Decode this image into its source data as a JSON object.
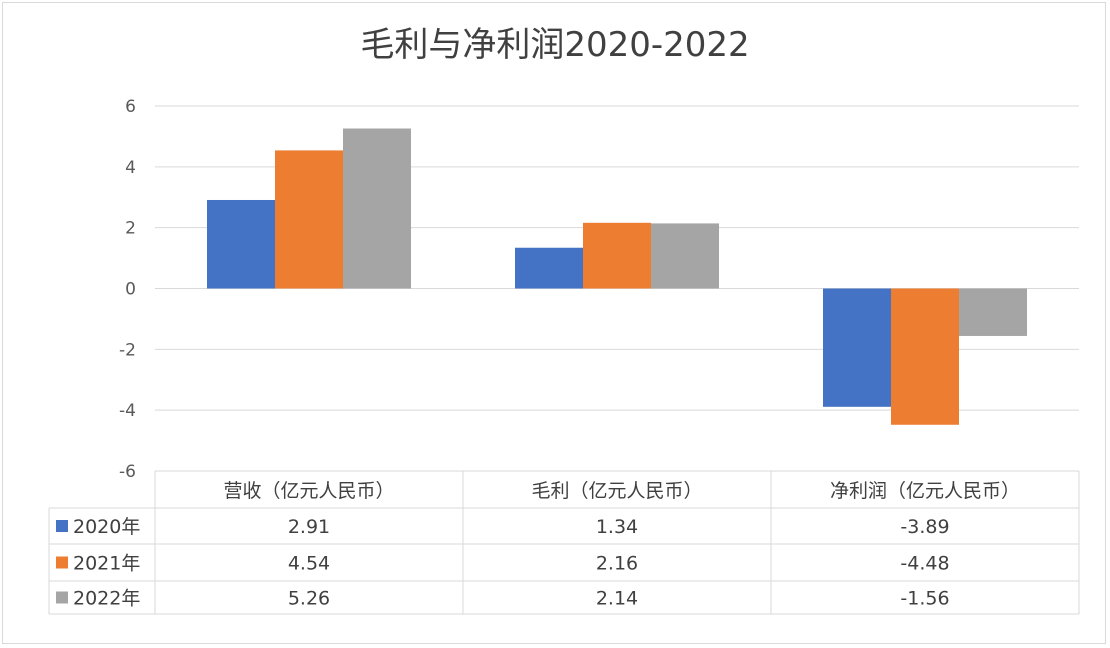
{
  "chart_data": {
    "type": "bar",
    "title": "毛利与净利润2020-2022",
    "categories": [
      "营收（亿元人民币）",
      "毛利（亿元人民币）",
      "净利润（亿元人民币）"
    ],
    "series": [
      {
        "name": "2020年",
        "color": "#4472c4",
        "values": [
          2.91,
          1.34,
          -3.89
        ],
        "labels": [
          "2.91",
          "1.34",
          "-3.89"
        ]
      },
      {
        "name": "2021年",
        "color": "#ed7d31",
        "values": [
          4.54,
          2.16,
          -4.48
        ],
        "labels": [
          "4.54",
          "2.16",
          "-4.48"
        ]
      },
      {
        "name": "2022年",
        "color": "#a5a5a5",
        "values": [
          5.26,
          2.14,
          -1.56
        ],
        "labels": [
          "5.26",
          "2.14",
          "-1.56"
        ]
      }
    ],
    "ylim": [
      -6,
      6
    ],
    "yticks": [
      6,
      4,
      2,
      0,
      -2,
      -4,
      -6
    ],
    "ytick_labels": [
      "6",
      "4",
      "2",
      "0",
      "-2",
      "-4",
      "-6"
    ],
    "grid": true,
    "legend": "data-table",
    "xlabel": "",
    "ylabel": ""
  }
}
